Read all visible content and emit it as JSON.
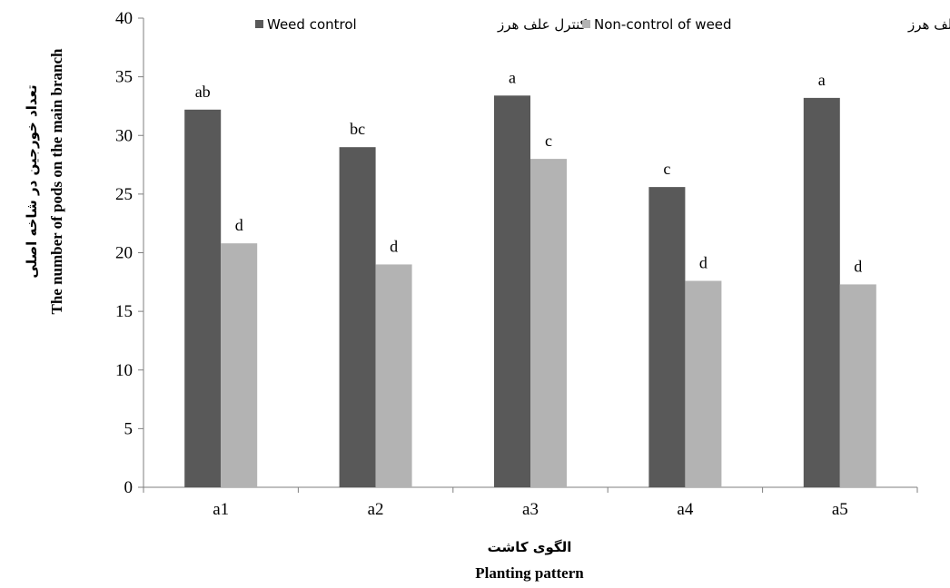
{
  "chart_data": {
    "type": "bar",
    "categories": [
      "a1",
      "a2",
      "a3",
      "a4",
      "a5"
    ],
    "series": [
      {
        "name": "Weed control کنترل علف هرز",
        "legend_en": "Weed control",
        "legend_fa": "کنترل علف هرز",
        "color": "#595959",
        "values": [
          32.2,
          29.0,
          33.4,
          25.6,
          33.2
        ],
        "labels": [
          "ab",
          "bc",
          "a",
          "c",
          "a"
        ]
      },
      {
        "name": "Non-control of weed عدم کنترل علف هرز",
        "legend_en": "Non-control of weed",
        "legend_fa": "عدم کنترل علف هرز",
        "color": "#b3b3b3",
        "values": [
          20.8,
          19.0,
          28.0,
          17.6,
          17.3
        ],
        "labels": [
          "d",
          "d",
          "c",
          "d",
          "d"
        ]
      }
    ],
    "xlabel_fa": "الگوی کاشت",
    "xlabel_en": "Planting pattern",
    "ylabel_fa": "تعداد خورجین در شاخه اصلی",
    "ylabel_en": "The number of pods on the main branch",
    "ylim": [
      0,
      40
    ],
    "yticks": [
      0,
      5,
      10,
      15,
      20,
      25,
      30,
      35,
      40
    ],
    "grid": false,
    "legend_position": "top"
  }
}
